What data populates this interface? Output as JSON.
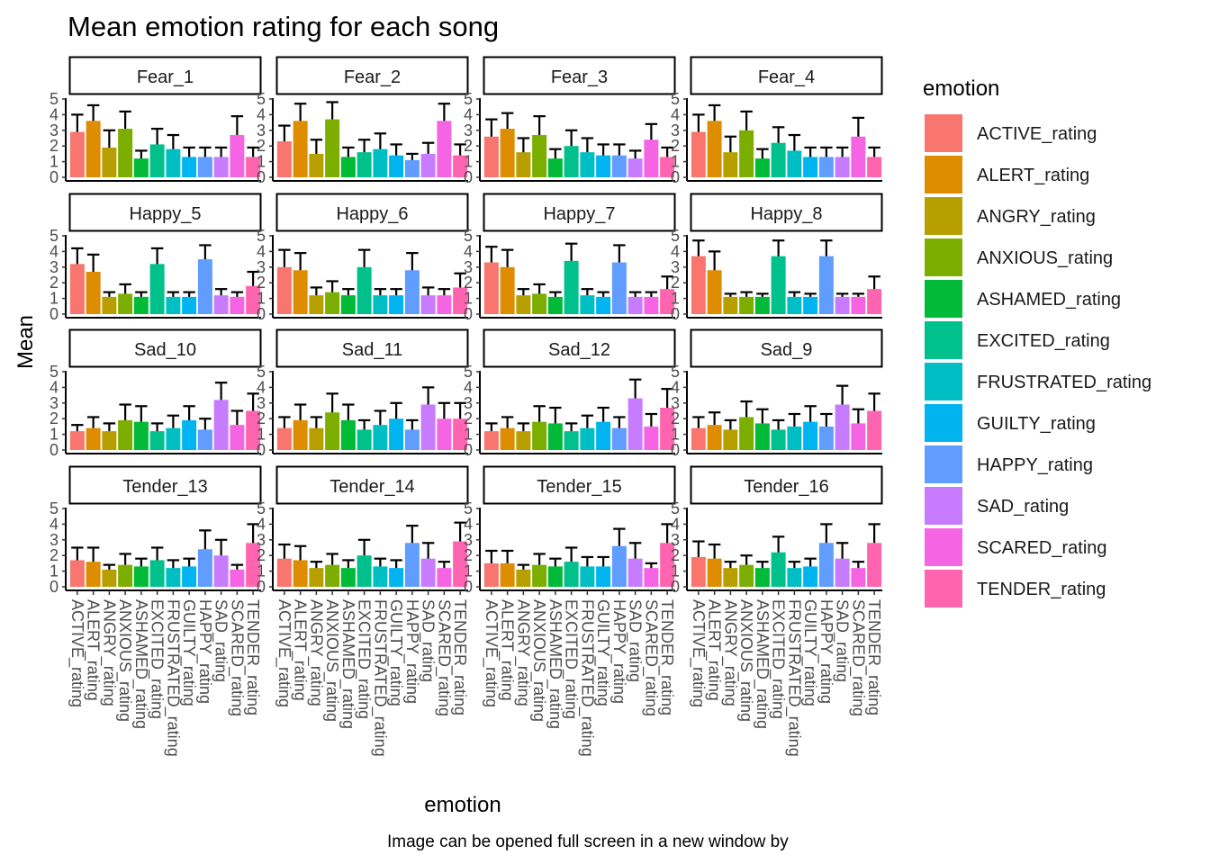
{
  "chart_data": {
    "type": "bar",
    "title": "Mean emotion rating for each song",
    "xlabel": "emotion",
    "ylabel": "Mean",
    "caption": "Image can be opened full screen in a new window by",
    "ylim": [
      0,
      5
    ],
    "yticks": [
      0,
      1,
      2,
      3,
      4,
      5
    ],
    "grid": false,
    "legend_position": "right",
    "legend_title": "emotion",
    "categories": [
      "ACTIVE_rating",
      "ALERT_rating",
      "ANGRY_rating",
      "ANXIOUS_rating",
      "ASHAMED_rating",
      "EXCITED_rating",
      "FRUSTRATED_rating",
      "GUILTY_rating",
      "HAPPY_rating",
      "SAD_rating",
      "SCARED_rating",
      "TENDER_rating"
    ],
    "colors": [
      "#F8766D",
      "#DE8C00",
      "#B79F00",
      "#7CAE00",
      "#00BA38",
      "#00C08B",
      "#00BFC4",
      "#00B4F0",
      "#619CFF",
      "#C77CFF",
      "#F564E3",
      "#FF64B0"
    ],
    "panels": [
      {
        "name": "Fear_1",
        "values": [
          2.9,
          3.6,
          1.9,
          3.1,
          1.2,
          2.1,
          1.8,
          1.3,
          1.3,
          1.3,
          2.7,
          1.3
        ],
        "errors": [
          1.1,
          1.0,
          1.1,
          1.1,
          0.5,
          1.0,
          0.9,
          0.6,
          0.6,
          0.6,
          1.2,
          0.6
        ]
      },
      {
        "name": "Fear_2",
        "values": [
          2.3,
          3.6,
          1.5,
          3.7,
          1.3,
          1.6,
          1.8,
          1.4,
          1.1,
          1.5,
          3.6,
          1.4
        ],
        "errors": [
          1.0,
          1.1,
          0.9,
          1.1,
          0.6,
          0.8,
          1.0,
          0.7,
          0.4,
          0.7,
          1.1,
          0.7
        ]
      },
      {
        "name": "Fear_3",
        "values": [
          2.6,
          3.1,
          1.6,
          2.7,
          1.2,
          2.0,
          1.6,
          1.4,
          1.4,
          1.2,
          2.4,
          1.3
        ],
        "errors": [
          1.1,
          1.0,
          0.9,
          1.2,
          0.6,
          1.0,
          0.9,
          0.7,
          0.7,
          0.5,
          1.0,
          0.6
        ]
      },
      {
        "name": "Fear_4",
        "values": [
          2.9,
          3.6,
          1.6,
          3.0,
          1.2,
          2.2,
          1.7,
          1.3,
          1.3,
          1.3,
          2.6,
          1.3
        ],
        "errors": [
          1.1,
          1.0,
          1.0,
          1.2,
          0.6,
          1.0,
          1.0,
          0.6,
          0.6,
          0.6,
          1.2,
          0.6
        ]
      },
      {
        "name": "Happy_5",
        "values": [
          3.2,
          2.7,
          1.1,
          1.3,
          1.1,
          3.2,
          1.1,
          1.1,
          3.5,
          1.2,
          1.1,
          1.8
        ],
        "errors": [
          1.0,
          1.1,
          0.3,
          0.6,
          0.3,
          1.0,
          0.3,
          0.3,
          0.9,
          0.4,
          0.3,
          0.9
        ]
      },
      {
        "name": "Happy_6",
        "values": [
          3.0,
          2.8,
          1.2,
          1.4,
          1.2,
          3.0,
          1.2,
          1.2,
          2.8,
          1.2,
          1.2,
          1.7
        ],
        "errors": [
          1.1,
          1.1,
          0.5,
          0.7,
          0.4,
          1.1,
          0.4,
          0.4,
          1.1,
          0.5,
          0.4,
          0.9
        ]
      },
      {
        "name": "Happy_7",
        "values": [
          3.3,
          3.0,
          1.2,
          1.3,
          1.1,
          3.4,
          1.2,
          1.1,
          3.3,
          1.1,
          1.1,
          1.6
        ],
        "errors": [
          1.0,
          1.1,
          0.4,
          0.6,
          0.3,
          1.1,
          0.4,
          0.3,
          1.1,
          0.3,
          0.3,
          0.8
        ]
      },
      {
        "name": "Happy_8",
        "values": [
          3.7,
          2.8,
          1.1,
          1.1,
          1.1,
          3.7,
          1.1,
          1.1,
          3.7,
          1.1,
          1.1,
          1.6
        ],
        "errors": [
          1.0,
          1.2,
          0.2,
          0.3,
          0.2,
          1.0,
          0.3,
          0.2,
          1.0,
          0.2,
          0.2,
          0.8
        ]
      },
      {
        "name": "Sad_10",
        "values": [
          1.2,
          1.4,
          1.2,
          1.9,
          1.8,
          1.2,
          1.4,
          1.9,
          1.3,
          3.2,
          1.6,
          2.5
        ],
        "errors": [
          0.4,
          0.7,
          0.5,
          1.0,
          1.0,
          0.5,
          0.8,
          0.9,
          0.7,
          1.1,
          0.9,
          1.1
        ]
      },
      {
        "name": "Sad_11",
        "values": [
          1.4,
          1.9,
          1.4,
          2.4,
          1.9,
          1.3,
          1.6,
          2.0,
          1.3,
          2.9,
          2.0,
          2.0
        ],
        "errors": [
          0.7,
          1.0,
          0.7,
          1.2,
          1.0,
          0.6,
          0.9,
          1.0,
          0.6,
          1.1,
          1.0,
          1.0
        ]
      },
      {
        "name": "Sad_12",
        "values": [
          1.2,
          1.4,
          1.2,
          1.8,
          1.7,
          1.2,
          1.4,
          1.8,
          1.4,
          3.3,
          1.5,
          2.7
        ],
        "errors": [
          0.5,
          0.7,
          0.5,
          1.0,
          1.0,
          0.5,
          0.8,
          0.9,
          0.7,
          1.2,
          0.8,
          1.2
        ]
      },
      {
        "name": "Sad_9",
        "values": [
          1.4,
          1.6,
          1.3,
          2.1,
          1.7,
          1.3,
          1.5,
          1.8,
          1.5,
          2.9,
          1.7,
          2.5
        ],
        "errors": [
          0.7,
          0.8,
          0.6,
          1.0,
          0.9,
          0.6,
          0.8,
          1.0,
          0.8,
          1.2,
          0.9,
          1.1
        ]
      },
      {
        "name": "Tender_13",
        "values": [
          1.7,
          1.6,
          1.1,
          1.4,
          1.3,
          1.7,
          1.2,
          1.3,
          2.4,
          2.0,
          1.1,
          2.8
        ],
        "errors": [
          0.8,
          0.9,
          0.3,
          0.7,
          0.5,
          0.8,
          0.5,
          0.5,
          1.2,
          1.0,
          0.3,
          1.2
        ]
      },
      {
        "name": "Tender_14",
        "values": [
          1.8,
          1.7,
          1.2,
          1.4,
          1.2,
          2.0,
          1.3,
          1.2,
          2.8,
          1.8,
          1.2,
          2.9
        ],
        "errors": [
          0.9,
          0.9,
          0.4,
          0.7,
          0.5,
          1.0,
          0.5,
          0.5,
          1.1,
          1.0,
          0.4,
          1.2
        ]
      },
      {
        "name": "Tender_15",
        "values": [
          1.5,
          1.5,
          1.1,
          1.4,
          1.3,
          1.6,
          1.3,
          1.3,
          2.6,
          1.8,
          1.2,
          2.8
        ],
        "errors": [
          0.8,
          0.8,
          0.3,
          0.7,
          0.5,
          0.9,
          0.6,
          0.6,
          1.1,
          1.0,
          0.3,
          1.2
        ]
      },
      {
        "name": "Tender_16",
        "values": [
          1.9,
          1.8,
          1.2,
          1.4,
          1.2,
          2.2,
          1.2,
          1.3,
          2.8,
          1.8,
          1.2,
          2.8
        ],
        "errors": [
          1.0,
          0.9,
          0.4,
          0.6,
          0.4,
          1.0,
          0.4,
          0.5,
          1.2,
          1.0,
          0.4,
          1.2
        ]
      }
    ]
  }
}
